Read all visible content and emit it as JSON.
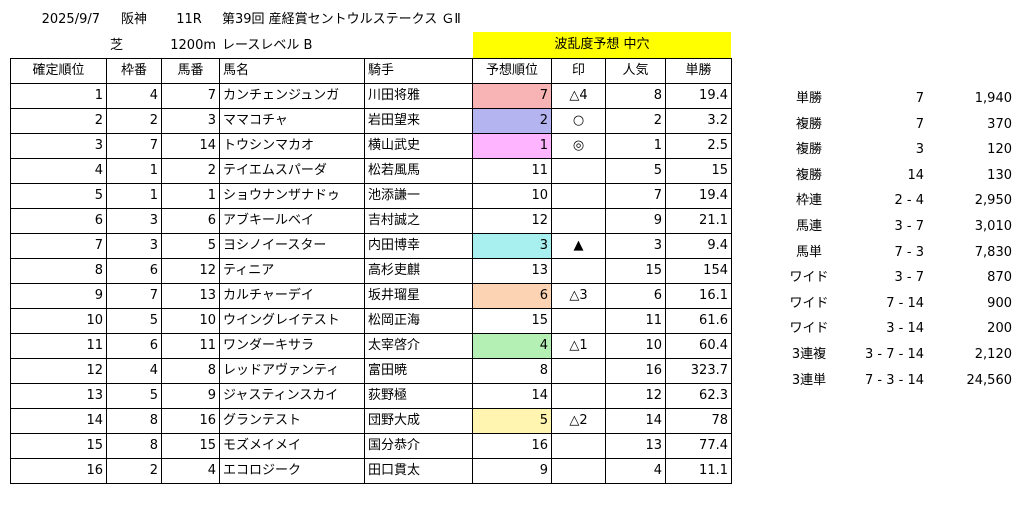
{
  "header": {
    "date": "2025/9/7",
    "venue": "阪神",
    "race_no": "11R",
    "race_name": "第39回 産経賞セントウルステークス ＧⅡ",
    "surface": "芝",
    "distance": "1200m",
    "race_level": "レースレベル B",
    "upset_forecast": "波乱度予想 中穴"
  },
  "columns": [
    "確定順位",
    "枠番",
    "馬番",
    "馬名",
    "騎手",
    "予想順位",
    "印",
    "人気",
    "単勝"
  ],
  "colors": {
    "red": "#f8b4b4",
    "blue": "#b4b4f0",
    "pink": "#ffb4ff",
    "cyan": "#a8f0f0",
    "orange": "#fcd4b4",
    "green": "#b4f0b4",
    "yellow": "#fff4b0",
    "band": "#ffff00"
  },
  "rows": [
    {
      "rank": "1",
      "waku": "4",
      "umaban": "7",
      "horse": "カンチェンジュンガ",
      "jockey": "川田将雅",
      "pred": "7",
      "pred_color": "red",
      "mark": "△4",
      "pop": "8",
      "odds": "19.4"
    },
    {
      "rank": "2",
      "waku": "2",
      "umaban": "3",
      "horse": "ママコチャ",
      "jockey": "岩田望来",
      "pred": "2",
      "pred_color": "blue",
      "mark": "○",
      "pop": "2",
      "odds": "3.2"
    },
    {
      "rank": "3",
      "waku": "7",
      "umaban": "14",
      "horse": "トウシンマカオ",
      "jockey": "横山武史",
      "pred": "1",
      "pred_color": "pink",
      "mark": "◎",
      "pop": "1",
      "odds": "2.5"
    },
    {
      "rank": "4",
      "waku": "1",
      "umaban": "2",
      "horse": "テイエムスパーダ",
      "jockey": "松若風馬",
      "pred": "11",
      "pred_color": "",
      "mark": "",
      "pop": "5",
      "odds": "15"
    },
    {
      "rank": "5",
      "waku": "1",
      "umaban": "1",
      "horse": "ショウナンザナドゥ",
      "jockey": "池添謙一",
      "pred": "10",
      "pred_color": "",
      "mark": "",
      "pop": "7",
      "odds": "19.4"
    },
    {
      "rank": "6",
      "waku": "3",
      "umaban": "6",
      "horse": "アブキールベイ",
      "jockey": "吉村誠之",
      "pred": "12",
      "pred_color": "",
      "mark": "",
      "pop": "9",
      "odds": "21.1"
    },
    {
      "rank": "7",
      "waku": "3",
      "umaban": "5",
      "horse": "ヨシノイースター",
      "jockey": "内田博幸",
      "pred": "3",
      "pred_color": "cyan",
      "mark": "▲",
      "pop": "3",
      "odds": "9.4"
    },
    {
      "rank": "8",
      "waku": "6",
      "umaban": "12",
      "horse": "ティニア",
      "jockey": "高杉吏麒",
      "pred": "13",
      "pred_color": "",
      "mark": "",
      "pop": "15",
      "odds": "154"
    },
    {
      "rank": "9",
      "waku": "7",
      "umaban": "13",
      "horse": "カルチャーデイ",
      "jockey": "坂井瑠星",
      "pred": "6",
      "pred_color": "orange",
      "mark": "△3",
      "pop": "6",
      "odds": "16.1"
    },
    {
      "rank": "10",
      "waku": "5",
      "umaban": "10",
      "horse": "ウイングレイテスト",
      "jockey": "松岡正海",
      "pred": "15",
      "pred_color": "",
      "mark": "",
      "pop": "11",
      "odds": "61.6"
    },
    {
      "rank": "11",
      "waku": "6",
      "umaban": "11",
      "horse": "ワンダーキサラ",
      "jockey": "太宰啓介",
      "pred": "4",
      "pred_color": "green",
      "mark": "△1",
      "pop": "10",
      "odds": "60.4"
    },
    {
      "rank": "12",
      "waku": "4",
      "umaban": "8",
      "horse": "レッドアヴァンティ",
      "jockey": "富田暁",
      "pred": "8",
      "pred_color": "",
      "mark": "",
      "pop": "16",
      "odds": "323.7"
    },
    {
      "rank": "13",
      "waku": "5",
      "umaban": "9",
      "horse": "ジャスティンスカイ",
      "jockey": "荻野極",
      "pred": "14",
      "pred_color": "",
      "mark": "",
      "pop": "12",
      "odds": "62.3"
    },
    {
      "rank": "14",
      "waku": "8",
      "umaban": "16",
      "horse": "グランテスト",
      "jockey": "団野大成",
      "pred": "5",
      "pred_color": "yellow",
      "mark": "△2",
      "pop": "14",
      "odds": "78"
    },
    {
      "rank": "15",
      "waku": "8",
      "umaban": "15",
      "horse": "モズメイメイ",
      "jockey": "国分恭介",
      "pred": "16",
      "pred_color": "",
      "mark": "",
      "pop": "13",
      "odds": "77.4"
    },
    {
      "rank": "16",
      "waku": "2",
      "umaban": "4",
      "horse": "エコロジーク",
      "jockey": "田口貫太",
      "pred": "9",
      "pred_color": "",
      "mark": "",
      "pop": "4",
      "odds": "11.1"
    }
  ],
  "payouts": [
    {
      "type": "単勝",
      "combo": "7",
      "amount": "1,940"
    },
    {
      "type": "複勝",
      "combo": "7",
      "amount": "370"
    },
    {
      "type": "複勝",
      "combo": "3",
      "amount": "120"
    },
    {
      "type": "複勝",
      "combo": "14",
      "amount": "130"
    },
    {
      "type": "枠連",
      "combo": "2 - 4",
      "amount": "2,950"
    },
    {
      "type": "馬連",
      "combo": "3 - 7",
      "amount": "3,010"
    },
    {
      "type": "馬単",
      "combo": "7 - 3",
      "amount": "7,830"
    },
    {
      "type": "ワイド",
      "combo": "3 - 7",
      "amount": "870"
    },
    {
      "type": "ワイド",
      "combo": "7 - 14",
      "amount": "900"
    },
    {
      "type": "ワイド",
      "combo": "3 - 14",
      "amount": "200"
    },
    {
      "type": "3連複",
      "combo": "3 - 7 - 14",
      "amount": "2,120"
    },
    {
      "type": "3連単",
      "combo": "7 - 3 - 14",
      "amount": "24,560"
    }
  ]
}
